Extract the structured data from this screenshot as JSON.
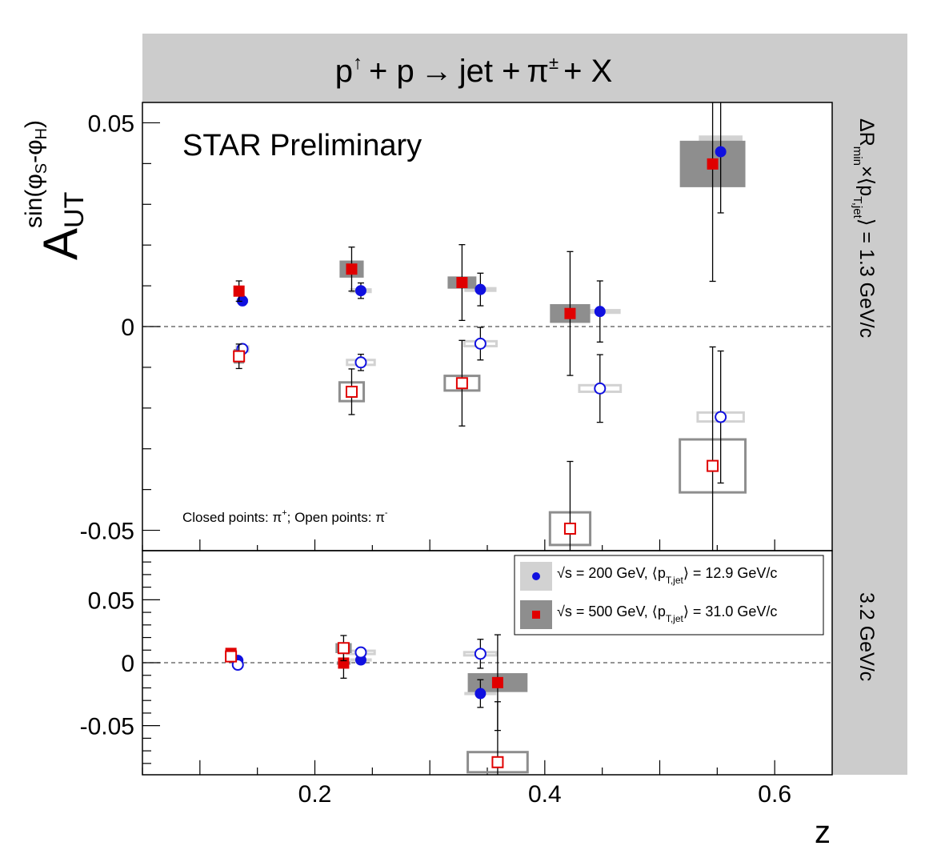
{
  "chart_data": {
    "type": "scatter",
    "title": "p↑ + p → jet + π± + X",
    "title_parts": {
      "p": "p",
      "up": "↑",
      "plus_p": "+ p",
      "arrow": "→",
      "jet": "jet +",
      "pi": "π",
      "pm": "±",
      "plus_x": "+ X"
    },
    "watermark": "STAR Preliminary",
    "note": {
      "a": "Closed points: π",
      "a_sup": "+",
      "b": "; Open points: π",
      "b_sup": "-"
    },
    "xlabel": "z",
    "ylabel": {
      "main": "A",
      "sub": "UT",
      "sup": "sin(φ",
      "sup_s": "S",
      "sup_mid": "-φ",
      "sup_h": "H",
      "sup_end": ")"
    },
    "side_labels": {
      "top": {
        "dr": "ΔR",
        "min": "min",
        "x": "×⟨p",
        "tjet": "T,jet",
        "rest": "⟩ = 1.3 GeV/c"
      },
      "bottom": "3.2 GeV/c"
    },
    "x_ticks": [
      "0.2",
      "0.4",
      "0.6"
    ],
    "xlim": [
      0.05,
      0.65
    ],
    "grid": false,
    "legend": {
      "placement": "inside bottom panel, top-right",
      "entries": [
        {
          "name": "√s = 200 GeV, ⟨p",
          "sub": "T,jet",
          "rest": "⟩ = 12.9 GeV/c"
        },
        {
          "name": "√s = 500 GeV, ⟨p",
          "sub": "T,jet",
          "rest": "⟩ = 31.0 GeV/c"
        }
      ]
    },
    "colors": {
      "s200": "#1010e0",
      "s500": "#e00000",
      "sys200": "#d2d2d2",
      "sys500": "#8e8e8e",
      "band": "#cccccc"
    },
    "panels": [
      {
        "y_ticks": [
          "0.05",
          "0",
          "-0.05"
        ],
        "ylim": [
          -0.055,
          0.055
        ],
        "series": [
          {
            "name": "200 π+",
            "open": false,
            "color": "blue",
            "points": [
              {
                "x": 0.137,
                "y": 0.0063,
                "err": 0.0006,
                "sx": 0.01,
                "sy": 0.0006
              },
              {
                "x": 0.24,
                "y": 0.0088,
                "err": 0.0019,
                "sx": 0.019,
                "sy": 0.0006
              },
              {
                "x": 0.344,
                "y": 0.0091,
                "err": 0.004,
                "sx": 0.028,
                "sy": 0.0006
              },
              {
                "x": 0.448,
                "y": 0.0037,
                "err": 0.0075,
                "sx": 0.036,
                "sy": 0.0006
              },
              {
                "x": 0.553,
                "y": 0.0429,
                "err": 0.015,
                "sx": 0.038,
                "sy": 0.004
              }
            ]
          },
          {
            "name": "200 π-",
            "open": true,
            "color": "blue",
            "points": [
              {
                "x": 0.137,
                "y": -0.0055,
                "err": 0.0006,
                "sx": 0.01,
                "sy": 0.0006
              },
              {
                "x": 0.24,
                "y": -0.0088,
                "err": 0.002,
                "sx": 0.024,
                "sy": 0.0006
              },
              {
                "x": 0.344,
                "y": -0.0042,
                "err": 0.004,
                "sx": 0.028,
                "sy": 0.0006
              },
              {
                "x": 0.448,
                "y": -0.0152,
                "err": 0.0083,
                "sx": 0.036,
                "sy": 0.0008
              },
              {
                "x": 0.553,
                "y": -0.0222,
                "err": 0.0162,
                "sx": 0.04,
                "sy": 0.0011
              }
            ]
          },
          {
            "name": "500 π+",
            "open": false,
            "color": "red",
            "points": [
              {
                "x": 0.134,
                "y": 0.0087,
                "err": 0.0025,
                "sx": 0.006,
                "sy": 0.0011
              },
              {
                "x": 0.232,
                "y": 0.0141,
                "err": 0.0054,
                "sx": 0.021,
                "sy": 0.0021
              },
              {
                "x": 0.328,
                "y": 0.0108,
                "err": 0.0093,
                "sx": 0.025,
                "sy": 0.0015
              },
              {
                "x": 0.422,
                "y": 0.0032,
                "err": 0.0152,
                "sx": 0.035,
                "sy": 0.0023
              },
              {
                "x": 0.546,
                "y": 0.0399,
                "err": 0.0288,
                "sx": 0.057,
                "sy": 0.0057
              }
            ]
          },
          {
            "name": "500 π-",
            "open": true,
            "color": "red",
            "points": [
              {
                "x": 0.134,
                "y": -0.0073,
                "err": 0.003,
                "sx": 0.007,
                "sy": 0.0015
              },
              {
                "x": 0.232,
                "y": -0.016,
                "err": 0.0056,
                "sx": 0.021,
                "sy": 0.0023
              },
              {
                "x": 0.328,
                "y": -0.0139,
                "err": 0.0105,
                "sx": 0.03,
                "sy": 0.0018
              },
              {
                "x": 0.422,
                "y": -0.0496,
                "err": 0.0165,
                "sx": 0.035,
                "sy": 0.004
              },
              {
                "x": 0.546,
                "y": -0.0342,
                "err": 0.0292,
                "sx": 0.057,
                "sy": 0.0065
              }
            ]
          }
        ]
      },
      {
        "y_ticks": [
          "0.05",
          "0",
          "-0.05"
        ],
        "ylim": [
          -0.089,
          0.089
        ],
        "series": [
          {
            "name": "200 π+",
            "open": false,
            "color": "blue",
            "points": [
              {
                "x": 0.133,
                "y": 0.0018,
                "err": 0.0012,
                "sx": 0.008,
                "sy": 0.001
              },
              {
                "x": 0.24,
                "y": 0.0022,
                "err": 0.003,
                "sx": 0.019,
                "sy": 0.001
              },
              {
                "x": 0.344,
                "y": -0.0245,
                "err": 0.011,
                "sx": 0.028,
                "sy": 0.0012
              }
            ]
          },
          {
            "name": "200 π-",
            "open": true,
            "color": "blue",
            "points": [
              {
                "x": 0.133,
                "y": -0.0016,
                "err": 0.0012,
                "sx": 0.008,
                "sy": 0.001
              },
              {
                "x": 0.24,
                "y": 0.0082,
                "err": 0.003,
                "sx": 0.024,
                "sy": 0.0012
              },
              {
                "x": 0.344,
                "y": 0.0071,
                "err": 0.0115,
                "sx": 0.028,
                "sy": 0.0012
              }
            ]
          },
          {
            "name": "500 π+",
            "open": false,
            "color": "red",
            "points": [
              {
                "x": 0.127,
                "y": 0.0074,
                "err": 0.0018,
                "sx": 0.006,
                "sy": 0.0018
              },
              {
                "x": 0.225,
                "y": -0.0003,
                "err": 0.012,
                "sx": 0.012,
                "sy": 0.0012
              },
              {
                "x": 0.359,
                "y": -0.0158,
                "err": 0.038,
                "sx": 0.052,
                "sy": 0.0075
              }
            ]
          },
          {
            "name": "500 π-",
            "open": true,
            "color": "red",
            "points": [
              {
                "x": 0.127,
                "y": 0.005,
                "err": 0.0018,
                "sx": 0.006,
                "sy": 0.0018
              },
              {
                "x": 0.225,
                "y": 0.0116,
                "err": 0.01,
                "sx": 0.012,
                "sy": 0.003
              },
              {
                "x": 0.359,
                "y": -0.079,
                "err": 0.048,
                "sx": 0.052,
                "sy": 0.008
              }
            ]
          }
        ]
      }
    ]
  }
}
